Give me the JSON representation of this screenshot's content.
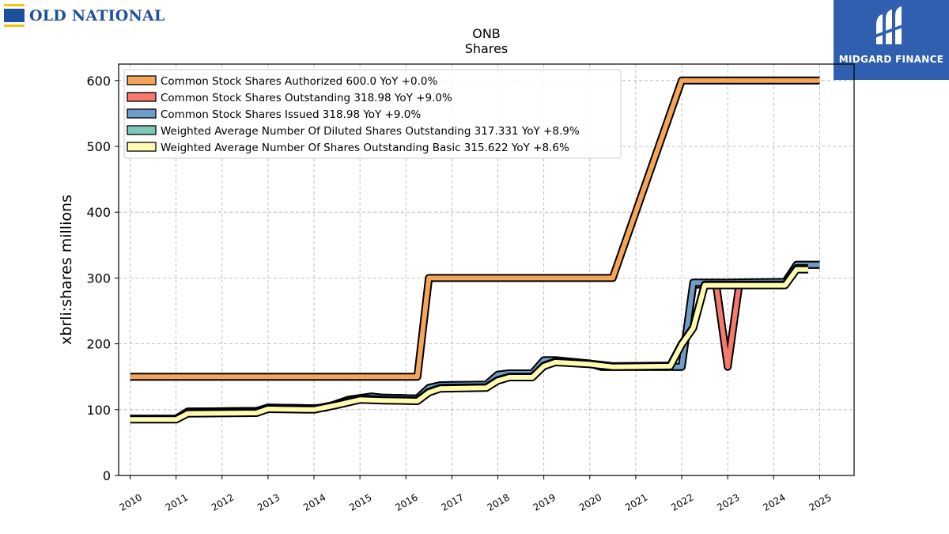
{
  "brand": {
    "left_logo_text": "OLD NATIONAL",
    "right_logo_text": "MIDGARD FINANCE",
    "colors": {
      "left_logo": "#1c4f9c",
      "left_logo_accent": "#f5c518",
      "right_logo_bg": "#2f5fae"
    }
  },
  "chart_data": {
    "type": "line",
    "title": "ONB",
    "subtitle": "Shares",
    "xlabel": "",
    "ylabel": "xbrli:shares millions",
    "xlim": [
      2009.75,
      2025.75
    ],
    "ylim": [
      0,
      625
    ],
    "yticks": [
      0,
      100,
      200,
      300,
      400,
      500,
      600
    ],
    "xticks": [
      "2010",
      "2011",
      "2012",
      "2013",
      "2014",
      "2015",
      "2016",
      "2017",
      "2018",
      "2019",
      "2020",
      "2021",
      "2022",
      "2023",
      "2024",
      "2025"
    ],
    "grid": true,
    "legend_position": "top-left",
    "series": [
      {
        "name": "Common Stock Shares Authorized",
        "legend": "Common Stock Shares Authorized  600.0 YoY +0.0%",
        "color": "#f5a55a",
        "points": [
          [
            2010.0,
            150
          ],
          [
            2016.25,
            150
          ],
          [
            2016.5,
            300
          ],
          [
            2020.5,
            300
          ],
          [
            2022.0,
            600
          ],
          [
            2025.0,
            600
          ]
        ]
      },
      {
        "name": "Common Stock Shares Outstanding",
        "legend": "Common Stock Shares Outstanding  318.98 YoY +9.0%",
        "color": "#f47a6b",
        "points": [
          [
            2010.0,
            86
          ],
          [
            2011.0,
            86
          ],
          [
            2011.25,
            97
          ],
          [
            2012.75,
            98
          ],
          [
            2013.0,
            103
          ],
          [
            2014.0,
            102
          ],
          [
            2014.25,
            103
          ],
          [
            2014.75,
            115
          ],
          [
            2015.25,
            120
          ],
          [
            2015.5,
            118
          ],
          [
            2016.25,
            117
          ],
          [
            2016.5,
            133
          ],
          [
            2016.75,
            137
          ],
          [
            2017.75,
            138
          ],
          [
            2018.0,
            153
          ],
          [
            2018.25,
            155
          ],
          [
            2018.75,
            155
          ],
          [
            2019.0,
            175
          ],
          [
            2019.25,
            175
          ],
          [
            2020.0,
            170
          ],
          [
            2020.25,
            165
          ],
          [
            2021.25,
            165
          ],
          [
            2022.0,
            165
          ],
          [
            2022.25,
            290
          ],
          [
            2022.75,
            290
          ],
          [
            2023.0,
            165
          ],
          [
            2023.25,
            290
          ],
          [
            2024.25,
            292
          ],
          [
            2024.5,
            320
          ],
          [
            2025.0,
            320
          ]
        ]
      },
      {
        "name": "Common Stock Shares Issued",
        "legend": "Common Stock Shares Issued  318.98 YoY +9.0%",
        "color": "#6f9cc8",
        "points": [
          [
            2010.0,
            86
          ],
          [
            2011.0,
            86
          ],
          [
            2011.25,
            97
          ],
          [
            2012.75,
            98
          ],
          [
            2013.0,
            103
          ],
          [
            2014.0,
            102
          ],
          [
            2014.25,
            103
          ],
          [
            2014.75,
            115
          ],
          [
            2015.25,
            120
          ],
          [
            2015.5,
            118
          ],
          [
            2016.25,
            117
          ],
          [
            2016.5,
            133
          ],
          [
            2016.75,
            137
          ],
          [
            2017.75,
            138
          ],
          [
            2018.0,
            153
          ],
          [
            2018.25,
            155
          ],
          [
            2018.75,
            155
          ],
          [
            2019.0,
            175
          ],
          [
            2019.25,
            175
          ],
          [
            2020.0,
            170
          ],
          [
            2020.25,
            165
          ],
          [
            2021.25,
            165
          ],
          [
            2022.0,
            165
          ],
          [
            2022.25,
            293
          ],
          [
            2022.75,
            293
          ],
          [
            2023.0,
            293
          ],
          [
            2024.25,
            294
          ],
          [
            2024.5,
            320
          ],
          [
            2025.0,
            320
          ]
        ]
      },
      {
        "name": "Weighted Average Number Of Diluted Shares Outstanding",
        "legend": "Weighted Average Number Of Diluted Shares Outstanding  317.331 YoY +8.9%",
        "color": "#7ec8b8",
        "points": [
          [
            2010.0,
            86
          ],
          [
            2011.0,
            86
          ],
          [
            2011.25,
            95
          ],
          [
            2012.75,
            96
          ],
          [
            2013.0,
            102
          ],
          [
            2014.0,
            101
          ],
          [
            2014.5,
            108
          ],
          [
            2015.0,
            117
          ],
          [
            2015.5,
            115
          ],
          [
            2016.25,
            114
          ],
          [
            2016.5,
            127
          ],
          [
            2016.75,
            133
          ],
          [
            2017.75,
            134
          ],
          [
            2018.0,
            145
          ],
          [
            2018.25,
            150
          ],
          [
            2018.75,
            150
          ],
          [
            2019.0,
            167
          ],
          [
            2019.25,
            173
          ],
          [
            2020.0,
            170
          ],
          [
            2020.25,
            168
          ],
          [
            2020.5,
            166
          ],
          [
            2021.75,
            167
          ],
          [
            2022.0,
            200
          ],
          [
            2022.25,
            225
          ],
          [
            2022.5,
            290
          ],
          [
            2023.25,
            290
          ],
          [
            2024.25,
            290
          ],
          [
            2024.5,
            315
          ],
          [
            2024.75,
            315
          ]
        ]
      },
      {
        "name": "Weighted Average Number Of Shares Outstanding Basic",
        "legend": "Weighted Average Number Of Shares Outstanding Basic  315.622 YoY +8.6%",
        "color": "#fffcb0",
        "points": [
          [
            2010.0,
            85
          ],
          [
            2011.0,
            85
          ],
          [
            2011.25,
            94
          ],
          [
            2012.75,
            95
          ],
          [
            2013.0,
            101
          ],
          [
            2014.0,
            100
          ],
          [
            2014.5,
            107
          ],
          [
            2015.0,
            115
          ],
          [
            2015.5,
            114
          ],
          [
            2016.25,
            113
          ],
          [
            2016.5,
            126
          ],
          [
            2016.75,
            132
          ],
          [
            2017.75,
            133
          ],
          [
            2018.0,
            144
          ],
          [
            2018.25,
            149
          ],
          [
            2018.75,
            149
          ],
          [
            2019.0,
            166
          ],
          [
            2019.25,
            172
          ],
          [
            2020.0,
            169
          ],
          [
            2020.25,
            167
          ],
          [
            2020.5,
            165
          ],
          [
            2021.75,
            166
          ],
          [
            2022.0,
            199
          ],
          [
            2022.25,
            224
          ],
          [
            2022.5,
            289
          ],
          [
            2023.25,
            289
          ],
          [
            2024.25,
            289
          ],
          [
            2024.5,
            313
          ],
          [
            2024.75,
            313
          ]
        ]
      }
    ]
  }
}
